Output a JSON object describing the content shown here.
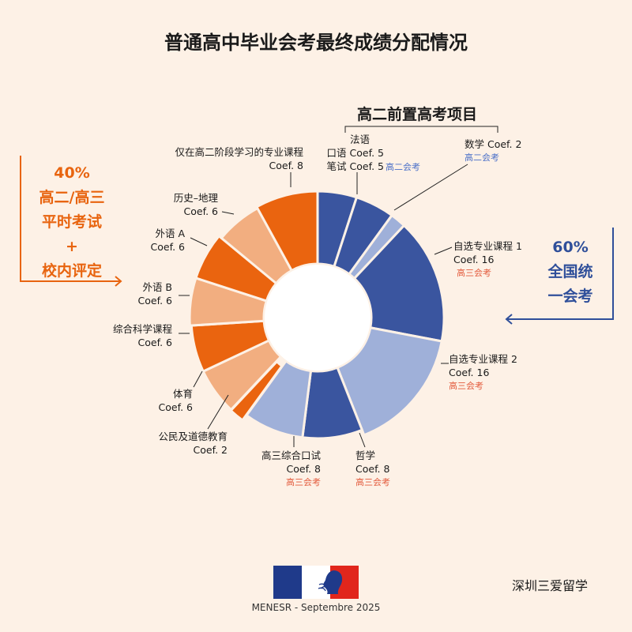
{
  "title": "普通高中毕业会考最终成绩分配情况",
  "bracket_title": "高二前置高考项目",
  "left_note": {
    "pct": "40%",
    "line1": "高二/高三",
    "line2": "平时考试",
    "plus": "+",
    "line3": "校内评定"
  },
  "right_note": {
    "pct": "60%",
    "line1": "全国统",
    "line2": "一会考"
  },
  "footer": "MENESR - Septembre 2025",
  "brand": "深圳三爱留学",
  "colors": {
    "dark_blue": "#3a559f",
    "light_blue": "#9fb0d9",
    "dark_orange": "#ea640f",
    "light_orange": "#f2ae80",
    "arrow_orange": "#e8640f",
    "arrow_blue": "#2f4f9a"
  },
  "chart_data": {
    "type": "pie",
    "variant": "donut",
    "title": "普通高中毕业会考最终成绩分配情况",
    "slices": [
      {
        "label": "法语 口语",
        "value": 5,
        "coef": "Coef. 5",
        "color": "#3a559f"
      },
      {
        "label": "法语 笔试",
        "value": 5,
        "coef": "Coef. 5",
        "color": "#3a559f"
      },
      {
        "label": "数学",
        "value": 2,
        "coef": "Coef. 2",
        "color": "#9fb0d9"
      },
      {
        "label": "自选专业课程 1",
        "value": 16,
        "coef": "Coef. 16",
        "color": "#3a559f"
      },
      {
        "label": "自选专业课程 2",
        "value": 16,
        "coef": "Coef. 16",
        "color": "#9fb0d9"
      },
      {
        "label": "哲学",
        "value": 8,
        "coef": "Coef. 8",
        "color": "#3a559f"
      },
      {
        "label": "高三综合口试",
        "value": 8,
        "coef": "Coef. 8",
        "color": "#9fb0d9"
      },
      {
        "label": "公民及道德教育",
        "value": 2,
        "coef": "Coef. 2",
        "color": "#ea640f"
      },
      {
        "label": "体育",
        "value": 6,
        "coef": "Coef. 6",
        "color": "#f2ae80"
      },
      {
        "label": "综合科学课程",
        "value": 6,
        "coef": "Coef. 6",
        "color": "#ea640f"
      },
      {
        "label": "外语 B",
        "value": 6,
        "coef": "Coef. 6",
        "color": "#f2ae80"
      },
      {
        "label": "外语 A",
        "value": 6,
        "coef": "Coef. 6",
        "color": "#ea640f"
      },
      {
        "label": "历史-地理",
        "value": 6,
        "coef": "Coef. 6",
        "color": "#f2ae80"
      },
      {
        "label": "仅在高二阶段学习的专业课程",
        "value": 8,
        "coef": "Coef. 8",
        "color": "#ea640f"
      }
    ],
    "tags": {
      "gao_er": "高二会考",
      "gao_san": "高三会考"
    },
    "labels": {
      "french": "法语",
      "oral": "口语",
      "written": "笔试",
      "coef5": "Coef. 5",
      "math": "数学 Coef. 2",
      "spe1": "自选专业课程 1",
      "spe2": "自选专业课程 2",
      "coef16": "Coef. 16",
      "philo": "哲学",
      "grand_oral": "高三综合口试",
      "coef8": "Coef. 8",
      "emc": "公民及道德教育",
      "coef2": "Coef. 2",
      "eps": "体育",
      "sci": "综合科学课程",
      "lvb": "外语 B",
      "lva": "外语 A",
      "hg": "历史–地理",
      "coef6": "Coef. 6",
      "spe_premiere": "仅在高二阶段学习的专业课程"
    }
  }
}
